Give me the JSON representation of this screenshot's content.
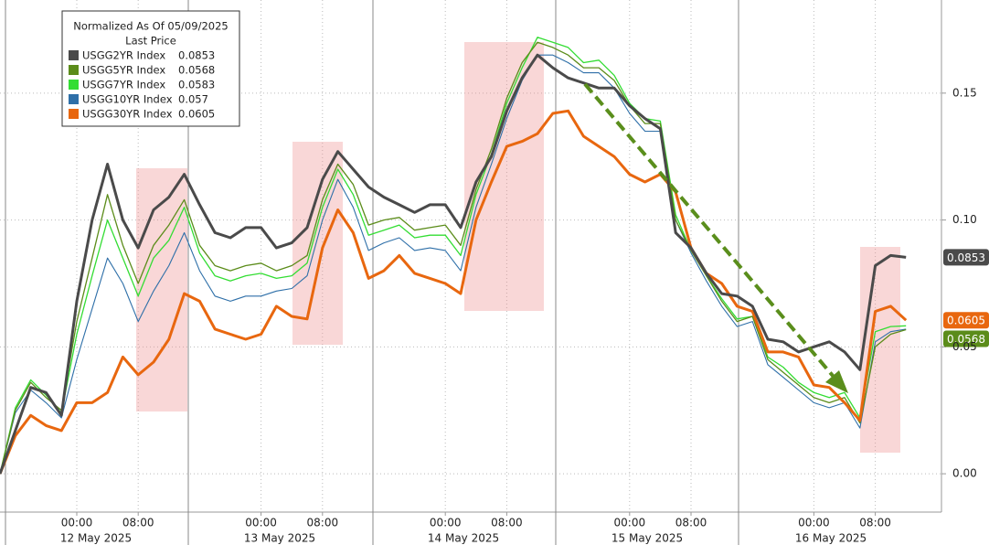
{
  "chart_data": {
    "type": "line",
    "legend_title": "Normalized As Of 05/09/2025",
    "legend_subtitle": "Last Price",
    "x": [
      "11 May 2025 14:00",
      "11 May 2025 16:00",
      "11 May 2025 18:00",
      "11 May 2025 20:00",
      "11 May 2025 22:00",
      "12 May 2025 00:00",
      "12 May 2025 02:00",
      "12 May 2025 04:00",
      "12 May 2025 06:00",
      "12 May 2025 08:00",
      "12 May 2025 10:00",
      "12 May 2025 12:00",
      "12 May 2025 14:00",
      "12 May 2025 16:00",
      "12 May 2025 18:00",
      "12 May 2025 20:00",
      "12 May 2025 22:00",
      "13 May 2025 00:00",
      "13 May 2025 02:00",
      "13 May 2025 04:00",
      "13 May 2025 06:00",
      "13 May 2025 08:00",
      "13 May 2025 10:00",
      "13 May 2025 12:00",
      "13 May 2025 14:00",
      "13 May 2025 16:00",
      "13 May 2025 18:00",
      "13 May 2025 20:00",
      "13 May 2025 22:00",
      "14 May 2025 00:00",
      "14 May 2025 02:00",
      "14 May 2025 04:00",
      "14 May 2025 06:00",
      "14 May 2025 08:00",
      "14 May 2025 10:00",
      "14 May 2025 12:00",
      "14 May 2025 14:00",
      "14 May 2025 16:00",
      "14 May 2025 18:00",
      "14 May 2025 20:00",
      "14 May 2025 22:00",
      "15 May 2025 00:00",
      "15 May 2025 02:00",
      "15 May 2025 04:00",
      "15 May 2025 06:00",
      "15 May 2025 08:00",
      "15 May 2025 10:00",
      "15 May 2025 12:00",
      "15 May 2025 14:00",
      "15 May 2025 16:00",
      "15 May 2025 18:00",
      "15 May 2025 20:00",
      "15 May 2025 22:00",
      "16 May 2025 00:00",
      "16 May 2025 02:00",
      "16 May 2025 04:00",
      "16 May 2025 06:00",
      "16 May 2025 08:00",
      "16 May 2025 10:00",
      "16 May 2025 12:00"
    ],
    "series": [
      {
        "name": "USGG2YR Index",
        "color": "#4a4a4a",
        "values": [
          0,
          0.017,
          0.034,
          0.032,
          0.023,
          0.068,
          0.1,
          0.122,
          0.1,
          0.089,
          0.104,
          0.109,
          0.118,
          0.106,
          0.095,
          0.093,
          0.097,
          0.097,
          0.089,
          0.091,
          0.097,
          0.116,
          0.127,
          0.12,
          0.113,
          0.109,
          0.106,
          0.103,
          0.106,
          0.106,
          0.097,
          0.115,
          0.125,
          0.143,
          0.156,
          0.165,
          0.16,
          0.156,
          0.154,
          0.152,
          0.152,
          0.145,
          0.14,
          0.136,
          0.095,
          0.089,
          0.079,
          0.071,
          0.07,
          0.066,
          0.053,
          0.052,
          0.048,
          0.05,
          0.052,
          0.048,
          0.041,
          0.082,
          0.086,
          0.0853
        ]
      },
      {
        "name": "USGG5YR Index",
        "color": "#5b8c1a",
        "values": [
          0,
          0.025,
          0.036,
          0.03,
          0.025,
          0.06,
          0.085,
          0.11,
          0.09,
          0.075,
          0.09,
          0.098,
          0.108,
          0.09,
          0.082,
          0.08,
          0.082,
          0.083,
          0.08,
          0.082,
          0.086,
          0.108,
          0.122,
          0.114,
          0.098,
          0.1,
          0.101,
          0.096,
          0.097,
          0.098,
          0.09,
          0.112,
          0.128,
          0.148,
          0.162,
          0.17,
          0.168,
          0.165,
          0.16,
          0.16,
          0.155,
          0.145,
          0.138,
          0.138,
          0.1,
          0.088,
          0.078,
          0.068,
          0.06,
          0.062,
          0.045,
          0.04,
          0.035,
          0.03,
          0.028,
          0.03,
          0.02,
          0.05,
          0.055,
          0.0568
        ]
      },
      {
        "name": "USGG7YR Index",
        "color": "#33dd33",
        "values": [
          0,
          0.026,
          0.037,
          0.031,
          0.024,
          0.055,
          0.078,
          0.1,
          0.085,
          0.07,
          0.085,
          0.092,
          0.105,
          0.087,
          0.078,
          0.076,
          0.078,
          0.079,
          0.077,
          0.078,
          0.083,
          0.105,
          0.12,
          0.11,
          0.094,
          0.096,
          0.098,
          0.093,
          0.094,
          0.094,
          0.086,
          0.11,
          0.126,
          0.146,
          0.16,
          0.172,
          0.17,
          0.168,
          0.162,
          0.163,
          0.157,
          0.146,
          0.14,
          0.139,
          0.102,
          0.088,
          0.078,
          0.069,
          0.061,
          0.062,
          0.046,
          0.042,
          0.036,
          0.032,
          0.03,
          0.032,
          0.022,
          0.056,
          0.058,
          0.0583
        ]
      },
      {
        "name": "USGG10YR Index",
        "color": "#2e6fa8",
        "values": [
          0,
          0.024,
          0.033,
          0.028,
          0.022,
          0.045,
          0.065,
          0.085,
          0.075,
          0.06,
          0.072,
          0.082,
          0.095,
          0.08,
          0.07,
          0.068,
          0.07,
          0.07,
          0.072,
          0.073,
          0.078,
          0.1,
          0.116,
          0.105,
          0.088,
          0.091,
          0.093,
          0.088,
          0.089,
          0.088,
          0.08,
          0.105,
          0.122,
          0.14,
          0.155,
          0.165,
          0.165,
          0.162,
          0.158,
          0.158,
          0.152,
          0.142,
          0.135,
          0.135,
          0.1,
          0.087,
          0.076,
          0.066,
          0.058,
          0.06,
          0.043,
          0.038,
          0.033,
          0.028,
          0.026,
          0.028,
          0.018,
          0.052,
          0.056,
          0.057
        ]
      },
      {
        "name": "USGG30YR Index",
        "color": "#e8670f",
        "values": [
          0,
          0.015,
          0.023,
          0.019,
          0.017,
          0.028,
          0.028,
          0.032,
          0.046,
          0.039,
          0.044,
          0.053,
          0.071,
          0.068,
          0.057,
          0.055,
          0.053,
          0.055,
          0.066,
          0.062,
          0.061,
          0.089,
          0.104,
          0.095,
          0.077,
          0.08,
          0.086,
          0.079,
          0.077,
          0.075,
          0.071,
          0.1,
          0.115,
          0.129,
          0.131,
          0.134,
          0.142,
          0.143,
          0.133,
          0.129,
          0.125,
          0.118,
          0.115,
          0.118,
          0.111,
          0.089,
          0.079,
          0.075,
          0.066,
          0.064,
          0.048,
          0.048,
          0.046,
          0.035,
          0.034,
          0.028,
          0.021,
          0.064,
          0.066,
          0.0605
        ]
      }
    ],
    "ylim": [
      -0.0151,
      0.1867
    ],
    "yticks": [
      {
        "value": 0,
        "label": "0.00"
      },
      0.05,
      {
        "value": 0.1,
        "label": "0.10"
      },
      0.15
    ],
    "xticks": [
      {
        "value": "12 May 2025 00:00",
        "label": "00:00"
      },
      {
        "value": "12 May 2025 08:00",
        "label": "08:00"
      },
      {
        "value": "13 May 2025 00:00",
        "label": "00:00"
      },
      {
        "value": "13 May 2025 08:00",
        "label": "08:00"
      },
      {
        "value": "14 May 2025 00:00",
        "label": "00:00"
      },
      {
        "value": "14 May 2025 08:00",
        "label": "08:00"
      },
      {
        "value": "15 May 2025 00:00",
        "label": "00:00"
      },
      {
        "value": "15 May 2025 08:00",
        "label": "08:00"
      },
      {
        "value": "16 May 2025 00:00",
        "label": "00:00"
      },
      {
        "value": "16 May 2025 08:00",
        "label": "08:00"
      }
    ],
    "date_labels": [
      "12 May 2025",
      "13 May 2025",
      "14 May 2025",
      "15 May 2025",
      "16 May 2025"
    ],
    "grid": true
  }
}
